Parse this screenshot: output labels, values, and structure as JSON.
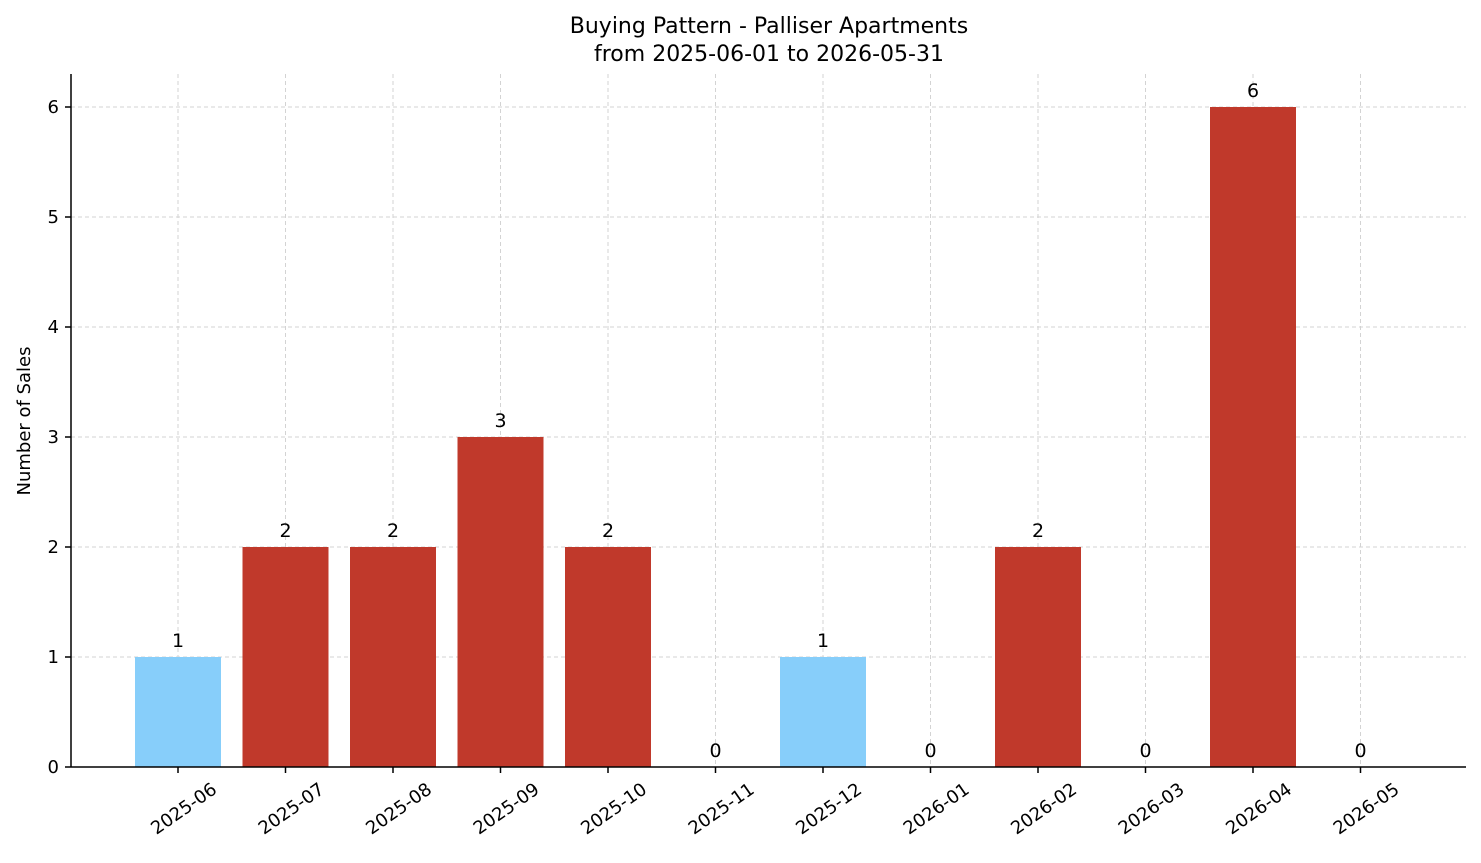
{
  "chart_data": {
    "type": "bar",
    "title": "Buying Pattern - Palliser Apartments",
    "subtitle": "from 2025-06-01 to 2026-05-31",
    "xlabel": "",
    "ylabel": "Number of Sales",
    "categories": [
      "2025-06",
      "2025-07",
      "2025-08",
      "2025-09",
      "2025-10",
      "2025-11",
      "2025-12",
      "2026-01",
      "2026-02",
      "2026-03",
      "2026-04",
      "2026-05"
    ],
    "values": [
      1,
      2,
      2,
      3,
      2,
      0,
      1,
      0,
      2,
      0,
      6,
      0
    ],
    "data_labels": [
      "1",
      "2",
      "2",
      "3",
      "2",
      "0",
      "1",
      "0",
      "2",
      "0",
      "6",
      "0"
    ],
    "y_ticks": [
      0,
      1,
      2,
      3,
      4,
      5,
      6
    ],
    "ylim": [
      0,
      6.3
    ],
    "grid": true,
    "colors": {
      "high": "#c0392b",
      "low": "#87cefa",
      "grid": "#d3d3d3",
      "axis": "#000000"
    }
  }
}
